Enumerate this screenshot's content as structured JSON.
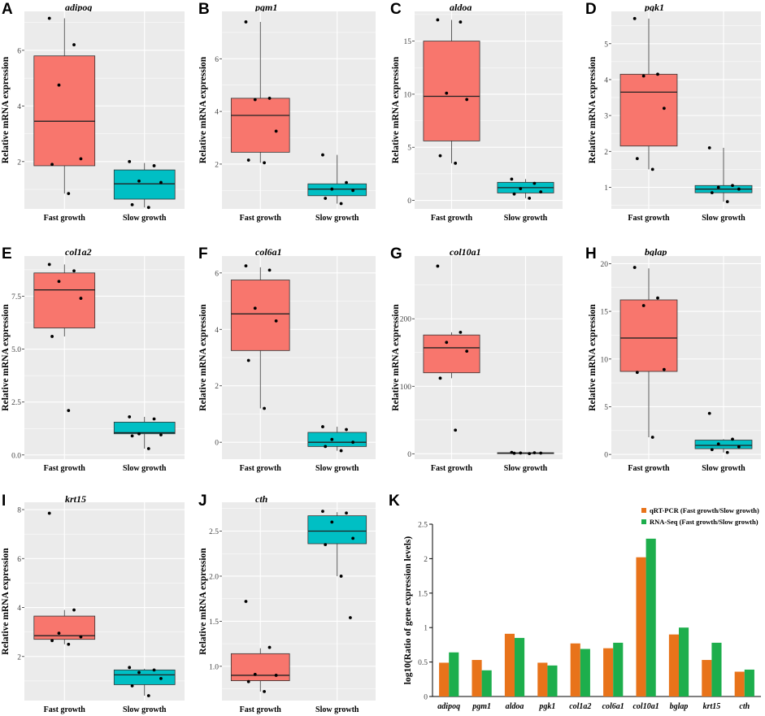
{
  "colors": {
    "fast_box": "#F8766D",
    "slow_box": "#00BFC4",
    "panel_bg": "#EBEBEB",
    "qrt_bar": "#E8731A",
    "rnaseq_bar": "#1DAE4C"
  },
  "chart_data": [
    {
      "letter": "A",
      "type": "box",
      "title": "adipoq",
      "ylabel": "Relative mRNA expression",
      "categories": [
        "Fast growth",
        "Slow growth"
      ],
      "ylim": [
        0.3,
        7.4
      ],
      "yticks": [
        2,
        4,
        6
      ],
      "ytick_labels": [
        "2",
        "4",
        "6"
      ],
      "boxes": [
        {
          "q1": 1.85,
          "median": 3.45,
          "q3": 5.8,
          "wlow": 0.85,
          "whigh": 7.15,
          "points": [
            7.15,
            6.2,
            4.75,
            2.1,
            1.9,
            0.85
          ]
        },
        {
          "q1": 0.65,
          "median": 1.2,
          "q3": 1.7,
          "wlow": 0.35,
          "whigh": 1.95,
          "points": [
            2.0,
            1.85,
            1.3,
            1.25,
            0.45,
            0.35
          ]
        }
      ]
    },
    {
      "letter": "B",
      "type": "box",
      "title": "pgm1",
      "ylabel": "Relative mRNA expression",
      "categories": [
        "Fast growth",
        "Slow growth"
      ],
      "ylim": [
        0.3,
        7.8
      ],
      "yticks": [
        2,
        4,
        6
      ],
      "ytick_labels": [
        "2",
        "4",
        "6"
      ],
      "boxes": [
        {
          "q1": 2.45,
          "median": 3.85,
          "q3": 4.5,
          "wlow": 2.05,
          "whigh": 7.4,
          "points": [
            7.4,
            4.5,
            4.45,
            3.25,
            2.15,
            2.05
          ]
        },
        {
          "q1": 0.8,
          "median": 1.05,
          "q3": 1.25,
          "wlow": 0.5,
          "whigh": 2.35,
          "points": [
            2.35,
            1.3,
            1.05,
            1.0,
            0.7,
            0.5
          ]
        }
      ]
    },
    {
      "letter": "C",
      "type": "box",
      "title": "aldoa",
      "ylabel": "Relative mRNA expression",
      "categories": [
        "Fast growth",
        "Slow growth"
      ],
      "ylim": [
        -0.8,
        17.8
      ],
      "yticks": [
        0,
        5,
        10,
        15
      ],
      "ytick_labels": [
        "0",
        "5",
        "10",
        "15"
      ],
      "boxes": [
        {
          "q1": 5.6,
          "median": 9.8,
          "q3": 15.0,
          "wlow": 3.5,
          "whigh": 17.0,
          "points": [
            17.0,
            16.8,
            10.1,
            9.5,
            4.2,
            3.5
          ]
        },
        {
          "q1": 0.7,
          "median": 1.2,
          "q3": 1.7,
          "wlow": 0.2,
          "whigh": 2.0,
          "points": [
            2.0,
            1.6,
            1.1,
            0.8,
            0.6,
            0.2
          ]
        }
      ]
    },
    {
      "letter": "D",
      "type": "box",
      "title": "pgk1",
      "ylabel": "Relative mRNA expression",
      "categories": [
        "Fast growth",
        "Slow growth"
      ],
      "ylim": [
        0.4,
        5.9
      ],
      "yticks": [
        1,
        2,
        3,
        4,
        5
      ],
      "ytick_labels": [
        "1",
        "2",
        "3",
        "4",
        "5"
      ],
      "boxes": [
        {
          "q1": 2.15,
          "median": 3.65,
          "q3": 4.15,
          "wlow": 1.5,
          "whigh": 5.7,
          "points": [
            5.7,
            4.15,
            4.1,
            3.2,
            1.8,
            1.5
          ]
        },
        {
          "q1": 0.85,
          "median": 0.95,
          "q3": 1.05,
          "wlow": 0.6,
          "whigh": 2.1,
          "points": [
            2.1,
            1.05,
            1.0,
            0.95,
            0.85,
            0.6
          ]
        }
      ]
    },
    {
      "letter": "E",
      "type": "box",
      "title": "col1a2",
      "ylabel": "Relative mRNA expression",
      "categories": [
        "Fast growth",
        "Slow growth"
      ],
      "ylim": [
        -0.2,
        9.4
      ],
      "yticks": [
        0,
        2.5,
        5,
        7.5
      ],
      "ytick_labels": [
        "0.0",
        "2.5",
        "5.0",
        "7.5"
      ],
      "boxes": [
        {
          "q1": 6.0,
          "median": 7.8,
          "q3": 8.6,
          "wlow": 5.6,
          "whigh": 9.0,
          "points": [
            9.0,
            8.7,
            8.2,
            7.4,
            5.6,
            2.1
          ]
        },
        {
          "q1": 1.0,
          "median": 1.05,
          "q3": 1.55,
          "wlow": 0.3,
          "whigh": 1.8,
          "points": [
            1.8,
            1.7,
            1.0,
            0.95,
            0.9,
            0.3
          ]
        }
      ]
    },
    {
      "letter": "F",
      "type": "box",
      "title": "col6a1",
      "ylabel": "Relative mRNA expression",
      "categories": [
        "Fast growth",
        "Slow growth"
      ],
      "ylim": [
        -0.6,
        6.6
      ],
      "yticks": [
        0,
        2,
        4,
        6
      ],
      "ytick_labels": [
        "0",
        "2",
        "4",
        "6"
      ],
      "boxes": [
        {
          "q1": 3.25,
          "median": 4.55,
          "q3": 5.75,
          "wlow": 1.2,
          "whigh": 6.2,
          "points": [
            6.25,
            6.1,
            4.75,
            4.3,
            2.9,
            1.2
          ]
        },
        {
          "q1": -0.15,
          "median": 0.0,
          "q3": 0.35,
          "wlow": -0.3,
          "whigh": 0.55,
          "points": [
            0.55,
            0.45,
            0.1,
            0.0,
            -0.15,
            -0.3
          ]
        }
      ]
    },
    {
      "letter": "G",
      "type": "box",
      "title": "col10a1",
      "ylabel": "Relative mRNA expression",
      "categories": [
        "Fast growth",
        "Slow growth"
      ],
      "ylim": [
        -8,
        293
      ],
      "yticks": [
        0,
        100,
        200
      ],
      "ytick_labels": [
        "0",
        "100",
        "200"
      ],
      "boxes": [
        {
          "q1": 120,
          "median": 157,
          "q3": 176,
          "wlow": 112,
          "whigh": 180,
          "points": [
            278,
            180,
            165,
            152,
            112,
            35
          ]
        },
        {
          "q1": 0.5,
          "median": 1.0,
          "q3": 1.5,
          "wlow": 0.3,
          "whigh": 2,
          "points": [
            2,
            1.5,
            1.2,
            1,
            0.8,
            0.3
          ]
        }
      ]
    },
    {
      "letter": "H",
      "type": "box",
      "title": "bglap",
      "ylabel": "Relative mRNA expression",
      "categories": [
        "Fast growth",
        "Slow growth"
      ],
      "ylim": [
        -0.5,
        20.8
      ],
      "yticks": [
        0,
        5,
        10,
        15,
        20
      ],
      "ytick_labels": [
        "0",
        "5",
        "10",
        "15",
        "20"
      ],
      "boxes": [
        {
          "q1": 8.7,
          "median": 12.2,
          "q3": 16.2,
          "wlow": 1.8,
          "whigh": 19.5,
          "points": [
            19.6,
            16.4,
            15.6,
            8.9,
            8.6,
            1.8
          ]
        },
        {
          "q1": 0.6,
          "median": 0.95,
          "q3": 1.5,
          "wlow": 0.2,
          "whigh": 1.6,
          "points": [
            4.3,
            1.6,
            1.1,
            0.8,
            0.5,
            0.2
          ]
        }
      ]
    },
    {
      "letter": "I",
      "type": "box",
      "title": "krt15",
      "ylabel": "Relative mRNA expression",
      "categories": [
        "Fast growth",
        "Slow growth"
      ],
      "ylim": [
        0.2,
        8.3
      ],
      "yticks": [
        2,
        4,
        6,
        8
      ],
      "ytick_labels": [
        "2",
        "4",
        "6",
        "8"
      ],
      "boxes": [
        {
          "q1": 2.7,
          "median": 2.85,
          "q3": 3.65,
          "wlow": 2.5,
          "whigh": 3.9,
          "points": [
            7.85,
            3.9,
            2.95,
            2.8,
            2.65,
            2.5
          ]
        },
        {
          "q1": 0.85,
          "median": 1.25,
          "q3": 1.45,
          "wlow": 0.4,
          "whigh": 1.5,
          "points": [
            1.55,
            1.45,
            1.35,
            1.1,
            0.8,
            0.4
          ]
        }
      ]
    },
    {
      "letter": "J",
      "type": "box",
      "title": "cth",
      "ylabel": "Relative mRNA expression",
      "categories": [
        "Fast growth",
        "Slow growth"
      ],
      "ylim": [
        0.62,
        2.82
      ],
      "yticks": [
        1.0,
        1.5,
        2.0,
        2.5
      ],
      "ytick_labels": [
        "1.0",
        "1.5",
        "2.0",
        "2.5"
      ],
      "boxes": [
        {
          "q1": 0.84,
          "median": 0.9,
          "q3": 1.14,
          "wlow": 0.72,
          "whigh": 1.2,
          "points": [
            1.72,
            1.21,
            0.91,
            0.9,
            0.83,
            0.72
          ]
        },
        {
          "q1": 2.36,
          "median": 2.5,
          "q3": 2.67,
          "wlow": 2.0,
          "whigh": 2.71,
          "points": [
            2.72,
            2.7,
            2.6,
            2.42,
            2.35,
            2.0,
            1.54
          ]
        }
      ]
    },
    {
      "letter": "K",
      "type": "bar",
      "ylabel": "log10(Ratio of gene expression levels)",
      "categories": [
        "adipoq",
        "pgm1",
        "aldoa",
        "pgk1",
        "col1a2",
        "col6a1",
        "col10a1",
        "bglap",
        "krt15",
        "cth"
      ],
      "ylim": [
        0,
        2.5
      ],
      "yticks": [
        0,
        0.5,
        1,
        1.5,
        2,
        2.5
      ],
      "ytick_labels": [
        "0",
        "0.5",
        "1",
        "1.5",
        "2",
        "2.5"
      ],
      "legend_position": "top-right",
      "series": [
        {
          "name": "qRT-PCR (Fast growth/Slow growth)",
          "values": [
            0.49,
            0.53,
            0.91,
            0.49,
            0.77,
            0.7,
            2.02,
            0.9,
            0.53,
            0.36
          ]
        },
        {
          "name": "RNA-Seq (Fast growth/Slow growth)",
          "values": [
            0.64,
            0.38,
            0.85,
            0.45,
            0.69,
            0.78,
            2.29,
            1.0,
            0.78,
            0.39
          ]
        }
      ]
    }
  ]
}
